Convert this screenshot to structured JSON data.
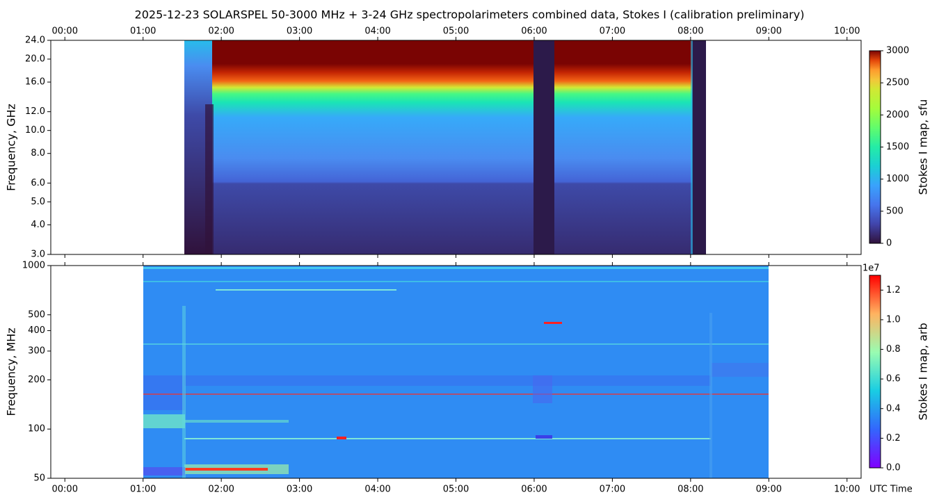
{
  "chart_data": [
    {
      "type": "heatmap",
      "title": "2025-12-23  SOLARSPEL  50-3000 MHz  +  3-24 GHz  spectropolarimeters combined data,  Stokes I  (calibration preliminary)",
      "ylabel": "Frequency, GHz",
      "xtick_side": "top",
      "xlim": [
        -0.18,
        10.18
      ],
      "xticks": [
        {
          "value": 0,
          "label": "00:00"
        },
        {
          "value": 1,
          "label": "01:00"
        },
        {
          "value": 2,
          "label": "02:00"
        },
        {
          "value": 3,
          "label": "03:00"
        },
        {
          "value": 4,
          "label": "04:00"
        },
        {
          "value": 5,
          "label": "05:00"
        },
        {
          "value": 6,
          "label": "06:00"
        },
        {
          "value": 7,
          "label": "07:00"
        },
        {
          "value": 8,
          "label": "08:00"
        },
        {
          "value": 9,
          "label": "09:00"
        },
        {
          "value": 10,
          "label": "10:00"
        }
      ],
      "ylim": [
        3,
        24
      ],
      "ylog": true,
      "yticks": [
        {
          "value": 3,
          "label": "3.0"
        },
        {
          "value": 4,
          "label": "4.0"
        },
        {
          "value": 5,
          "label": "5.0"
        },
        {
          "value": 6,
          "label": "6.0"
        },
        {
          "value": 8,
          "label": "8.0"
        },
        {
          "value": 10,
          "label": "10.0"
        },
        {
          "value": 12,
          "label": "12.0"
        },
        {
          "value": 16,
          "label": "16.0"
        },
        {
          "value": 20,
          "label": "20.0"
        },
        {
          "value": 24,
          "label": "24.0"
        }
      ],
      "colorbar": {
        "label": "Stokes I map, sfu",
        "colormap": "turbo",
        "lim": [
          0,
          3000
        ],
        "ticks": [
          0,
          500,
          1000,
          1500,
          2000,
          2500,
          3000
        ]
      }
    },
    {
      "type": "heatmap",
      "ylabel": "Frequency, MHz",
      "xlabel": "UTC Time",
      "xtick_side": "bottom",
      "xlim": [
        -0.18,
        10.18
      ],
      "xticks": [
        {
          "value": 0,
          "label": "00:00"
        },
        {
          "value": 1,
          "label": "01:00"
        },
        {
          "value": 2,
          "label": "02:00"
        },
        {
          "value": 3,
          "label": "03:00"
        },
        {
          "value": 4,
          "label": "04:00"
        },
        {
          "value": 5,
          "label": "05:00"
        },
        {
          "value": 6,
          "label": "06:00"
        },
        {
          "value": 7,
          "label": "07:00"
        },
        {
          "value": 8,
          "label": "08:00"
        },
        {
          "value": 9,
          "label": "09:00"
        },
        {
          "value": 10,
          "label": "10:00"
        }
      ],
      "ylim": [
        50,
        1000
      ],
      "ylog": true,
      "yticks": [
        50,
        100,
        200,
        300,
        400,
        500,
        1000
      ],
      "colorbar": {
        "label": "Stokes I map, arb",
        "colormap": "rainbow",
        "lim": [
          0,
          1.3
        ],
        "offset_label": "1e7",
        "ticks": [
          {
            "value": 0,
            "label": "0.0"
          },
          {
            "value": 0.2,
            "label": "0.2"
          },
          {
            "value": 0.4,
            "label": "0.4"
          },
          {
            "value": 0.6,
            "label": "0.6"
          },
          {
            "value": 0.8,
            "label": "0.8"
          },
          {
            "value": 1.0,
            "label": "1.0"
          },
          {
            "value": 1.2,
            "label": "1.2"
          }
        ]
      }
    }
  ]
}
